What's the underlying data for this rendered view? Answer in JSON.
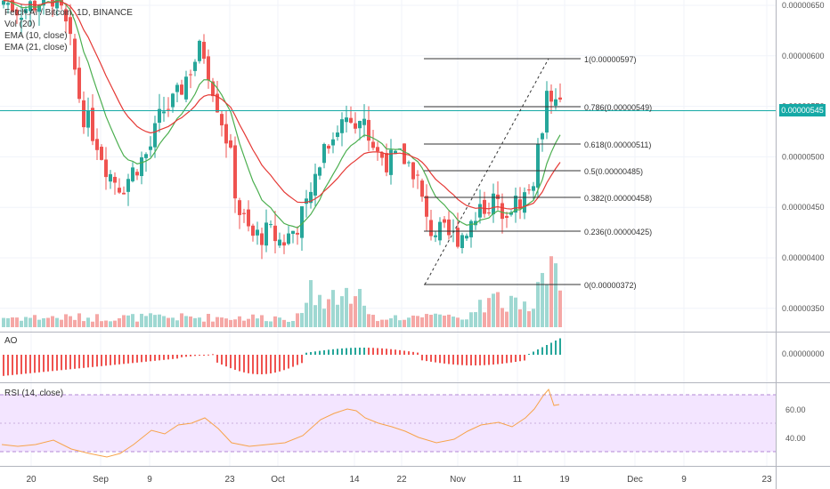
{
  "legend": {
    "symbol": "Fetch.AI / Bitcoin, 1D, BINANCE",
    "vol": "Vol (20)",
    "ema10": "EMA (10, close)",
    "ema21": "EMA (21, close)"
  },
  "panes": {
    "ao_label": "AO",
    "rsi_label": "RSI (14, close)"
  },
  "price_axis": [
    "0.00000650",
    "0.00000600",
    "0.00000550",
    "0.00000500",
    "0.00000450",
    "0.00000400",
    "0.00000350"
  ],
  "current_price": "0.00000545",
  "ao_axis": [
    "0.00000000"
  ],
  "rsi_axis": [
    "60.00",
    "40.00"
  ],
  "time_axis": [
    "20",
    "Sep",
    "9",
    "23",
    "Oct",
    "14",
    "22",
    "Nov",
    "11",
    "19",
    "Dec",
    "9",
    "23"
  ],
  "fib_levels": [
    {
      "label": "1(0.00000597)",
      "value": 5.97e-06
    },
    {
      "label": "0.786(0.00000549)",
      "value": 5.49e-06
    },
    {
      "label": "0.618(0.00000511)",
      "value": 5.11e-06
    },
    {
      "label": "0.5(0.00000485)",
      "value": 4.85e-06
    },
    {
      "label": "0.382(0.00000458)",
      "value": 4.58e-06
    },
    {
      "label": "0.236(0.00000425)",
      "value": 4.25e-06
    },
    {
      "label": "0(0.00000372)",
      "value": 3.72e-06
    }
  ],
  "colors": {
    "up": "#26a69a",
    "down": "#ef5350",
    "ema10": "#4caf50",
    "ema21": "#e53935",
    "rsi": "#f7a34a",
    "rsi_band": "#f3e5ff",
    "price_line": "#16a9a6"
  }
}
